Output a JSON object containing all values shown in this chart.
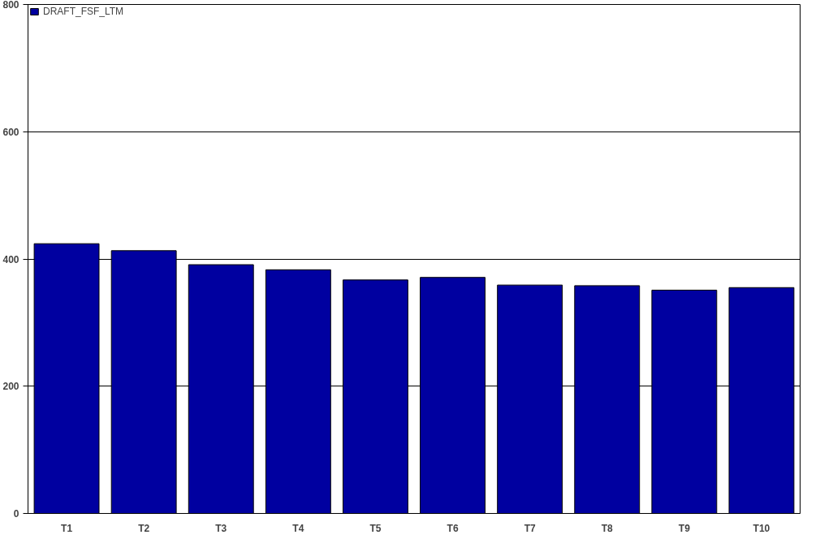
{
  "chart_data": {
    "type": "bar",
    "categories": [
      "T1",
      "T2",
      "T3",
      "T4",
      "T5",
      "T6",
      "T7",
      "T8",
      "T9",
      "T10"
    ],
    "series": [
      {
        "name": "DRAFT_FSF_LTM",
        "color": "#0000a0",
        "values": [
          424,
          413,
          391,
          383,
          367,
          371,
          359,
          358,
          351,
          355
        ]
      }
    ],
    "ylim": [
      0,
      800
    ],
    "yticks": [
      0,
      200,
      400,
      600,
      800
    ],
    "grid": "y",
    "legend": "top left"
  }
}
